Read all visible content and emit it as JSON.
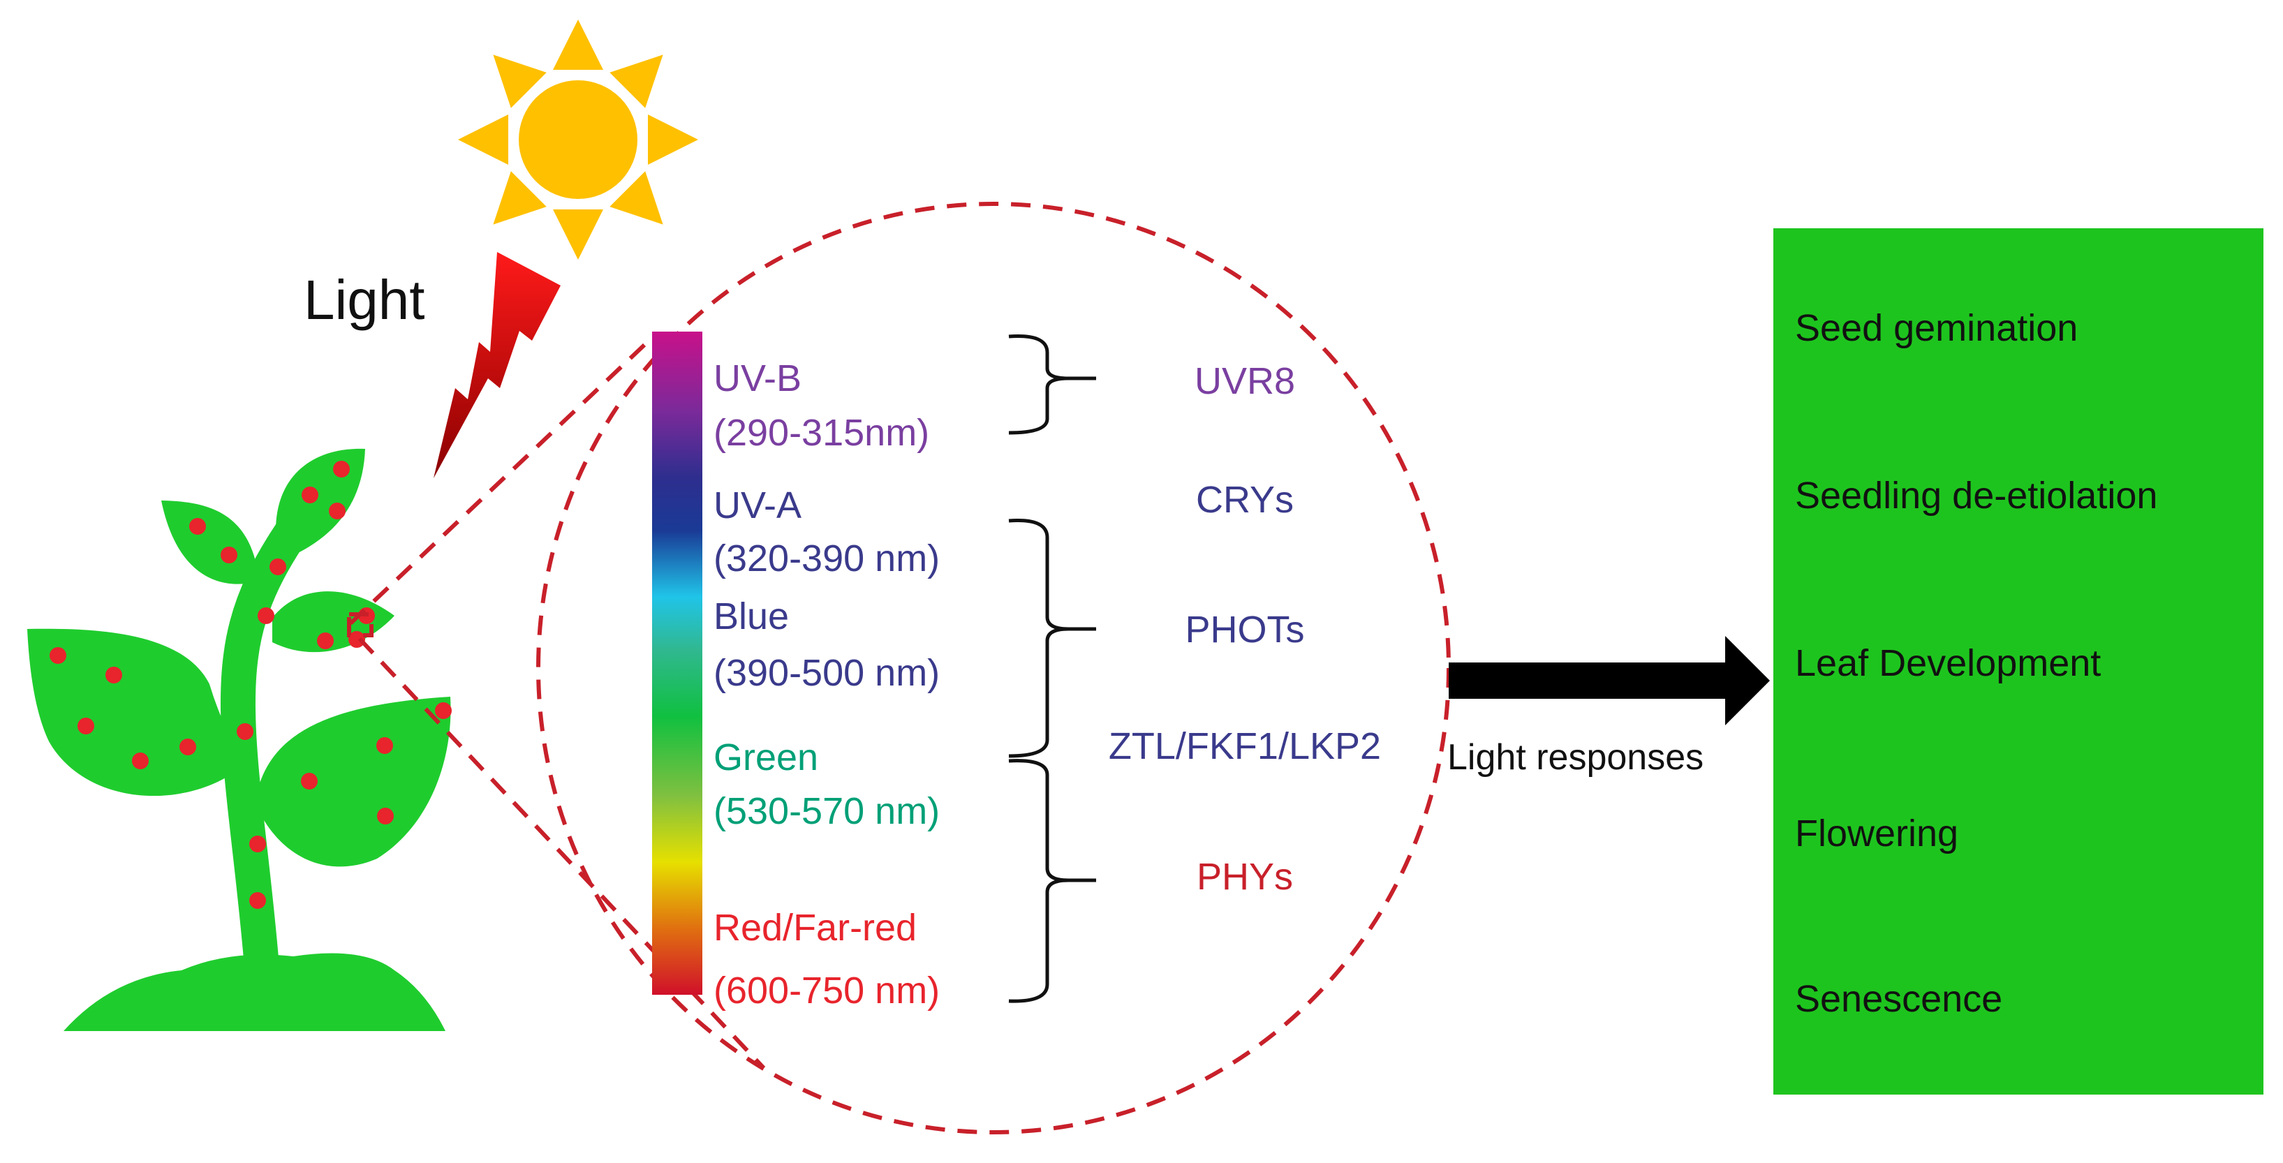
{
  "light_label": "Light",
  "spectrum": [
    {
      "name": "UV-B",
      "range": "(290-315nm)",
      "color": "#7a3fa0"
    },
    {
      "name": "UV-A",
      "range": "(320-390 nm)",
      "color": "#3a3a8c"
    },
    {
      "name": "Blue",
      "range": "(390-500 nm)",
      "color": "#3a3a8c"
    },
    {
      "name": "Green",
      "range": "(530-570 nm)",
      "color": "#00a077"
    },
    {
      "name": "Red/Far-red",
      "range": "(600-750 nm)",
      "color": "#e8242c"
    }
  ],
  "photoreceptors": [
    {
      "name": "UVR8",
      "color": "#7a3fa0"
    },
    {
      "name": "CRYs",
      "color": "#3a3a8c"
    },
    {
      "name": "PHOTs",
      "color": "#3a3a8c"
    },
    {
      "name": "ZTL/FKF1/LKP2",
      "color": "#3a3a8c"
    },
    {
      "name": "PHYs",
      "color": "#c8202a"
    }
  ],
  "arrow_label": "Light responses",
  "responses": [
    "Seed gemination",
    "Seedling de-etiolation",
    "Leaf Development",
    "Flowering",
    "Senescence"
  ],
  "colors": {
    "plant": "#1fcc2e",
    "dots": "#e8242c",
    "sun": "#ffc000",
    "response_box": "#1ec41e",
    "dashed": "#c8202a"
  }
}
